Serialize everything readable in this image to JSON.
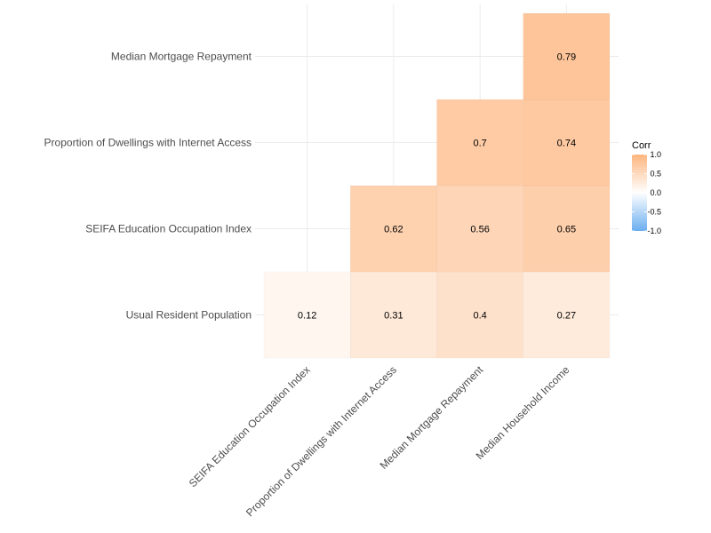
{
  "chart_data": {
    "type": "heatmap",
    "x_categories": [
      "SEIFA Education Occupation Index",
      "Proportion of Dwellings with Internet Access",
      "Median Mortgage Repayment",
      "Median Household Income"
    ],
    "y_categories": [
      "Usual Resident Population",
      "SEIFA Education Occupation Index",
      "Proportion of Dwellings with Internet Access",
      "Median Mortgage Repayment"
    ],
    "cells": [
      {
        "x": "SEIFA Education Occupation Index",
        "y": "Usual Resident Population",
        "value": 0.12,
        "label": "0.12"
      },
      {
        "x": "Proportion of Dwellings with Internet Access",
        "y": "Usual Resident Population",
        "value": 0.31,
        "label": "0.31"
      },
      {
        "x": "Median Mortgage Repayment",
        "y": "Usual Resident Population",
        "value": 0.4,
        "label": "0.4"
      },
      {
        "x": "Median Household Income",
        "y": "Usual Resident Population",
        "value": 0.27,
        "label": "0.27"
      },
      {
        "x": "Proportion of Dwellings with Internet Access",
        "y": "SEIFA Education Occupation Index",
        "value": 0.62,
        "label": "0.62"
      },
      {
        "x": "Median Mortgage Repayment",
        "y": "SEIFA Education Occupation Index",
        "value": 0.56,
        "label": "0.56"
      },
      {
        "x": "Median Household Income",
        "y": "SEIFA Education Occupation Index",
        "value": 0.65,
        "label": "0.65"
      },
      {
        "x": "Median Mortgage Repayment",
        "y": "Proportion of Dwellings with Internet Access",
        "value": 0.7,
        "label": "0.7"
      },
      {
        "x": "Median Household Income",
        "y": "Proportion of Dwellings with Internet Access",
        "value": 0.74,
        "label": "0.74"
      },
      {
        "x": "Median Household Income",
        "y": "Median Mortgage Repayment",
        "value": 0.79,
        "label": "0.79"
      }
    ],
    "legend": {
      "title": "Corr",
      "ticks": [
        {
          "value": 1.0,
          "label": "1.0"
        },
        {
          "value": 0.5,
          "label": "0.5"
        },
        {
          "value": 0.0,
          "label": "0.0"
        },
        {
          "value": -0.5,
          "label": "-0.5"
        },
        {
          "value": -1.0,
          "label": "-1.0"
        }
      ],
      "range": [
        -1,
        1
      ],
      "placement": "right"
    },
    "colors": {
      "low": "#6aaef0",
      "mid": "#ffffff",
      "high": "#fdb57e"
    },
    "grid": true
  }
}
